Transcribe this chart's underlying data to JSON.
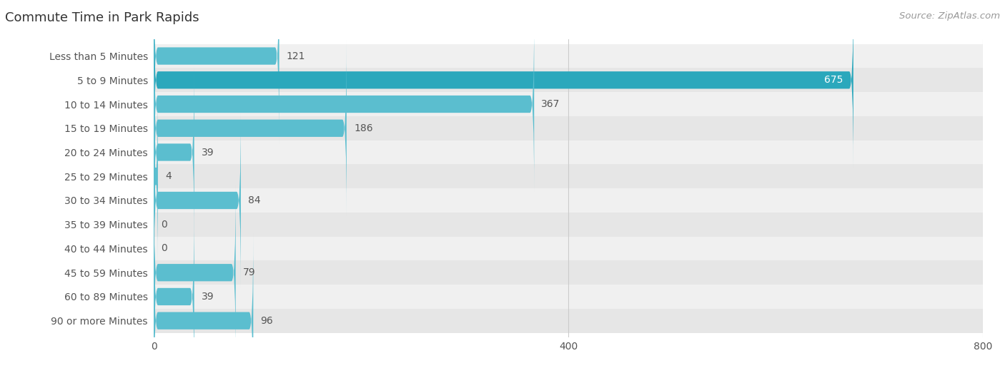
{
  "title": "Commute Time in Park Rapids",
  "source": "Source: ZipAtlas.com",
  "categories": [
    "Less than 5 Minutes",
    "5 to 9 Minutes",
    "10 to 14 Minutes",
    "15 to 19 Minutes",
    "20 to 24 Minutes",
    "25 to 29 Minutes",
    "30 to 34 Minutes",
    "35 to 39 Minutes",
    "40 to 44 Minutes",
    "45 to 59 Minutes",
    "60 to 89 Minutes",
    "90 or more Minutes"
  ],
  "values": [
    121,
    675,
    367,
    186,
    39,
    4,
    84,
    0,
    0,
    79,
    39,
    96
  ],
  "bar_color": "#5bbecf",
  "bar_color_highlight": "#2ba8bc",
  "row_bg_odd": "#f0f0f0",
  "row_bg_even": "#e6e6e6",
  "title_color": "#333333",
  "label_color": "#555555",
  "value_color": "#555555",
  "source_color": "#999999",
  "xlim": [
    0,
    800
  ],
  "xticks": [
    0,
    400,
    800
  ],
  "title_fontsize": 13,
  "label_fontsize": 10,
  "value_fontsize": 10,
  "source_fontsize": 9.5
}
